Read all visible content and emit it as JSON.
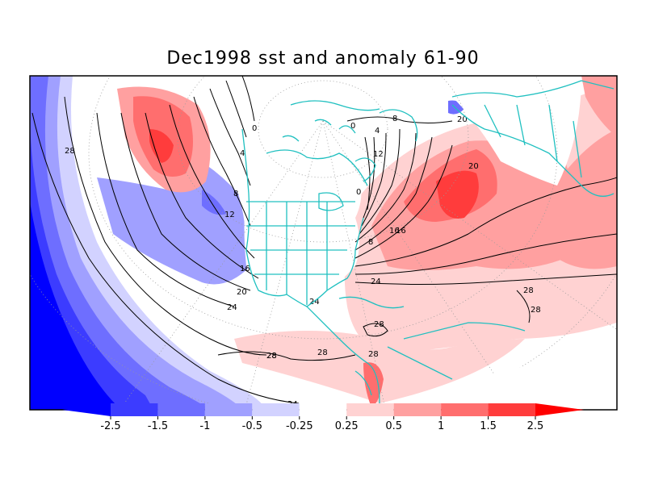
{
  "title": "Dec1998 sst and anomaly 61-90",
  "colorbar": {
    "ticks": [
      "-2.5",
      "-1.5",
      "-1",
      "-0.5",
      "-0.25",
      "0.25",
      "0.5",
      "1",
      "1.5",
      "2.5"
    ],
    "colors": [
      "#0000ff",
      "#3c3cff",
      "#6e6eff",
      "#a0a0ff",
      "#d2d2ff",
      "#ffffff",
      "#ffd2d2",
      "#ffa0a0",
      "#ff6e6e",
      "#ff3c3c",
      "#ff0000"
    ]
  },
  "contour_labels": [
    "28",
    "0",
    "4",
    "8",
    "12",
    "16",
    "20",
    "24",
    "24",
    "28",
    "28",
    "0",
    "4",
    "8",
    "12",
    "16",
    "20",
    "24",
    "28",
    "28",
    "28",
    "24",
    "0",
    "8",
    "16",
    "20",
    "28",
    "28"
  ],
  "colors": {
    "contour_line": "#000000",
    "coastline": "#20c0c0",
    "frame": "#000000"
  }
}
